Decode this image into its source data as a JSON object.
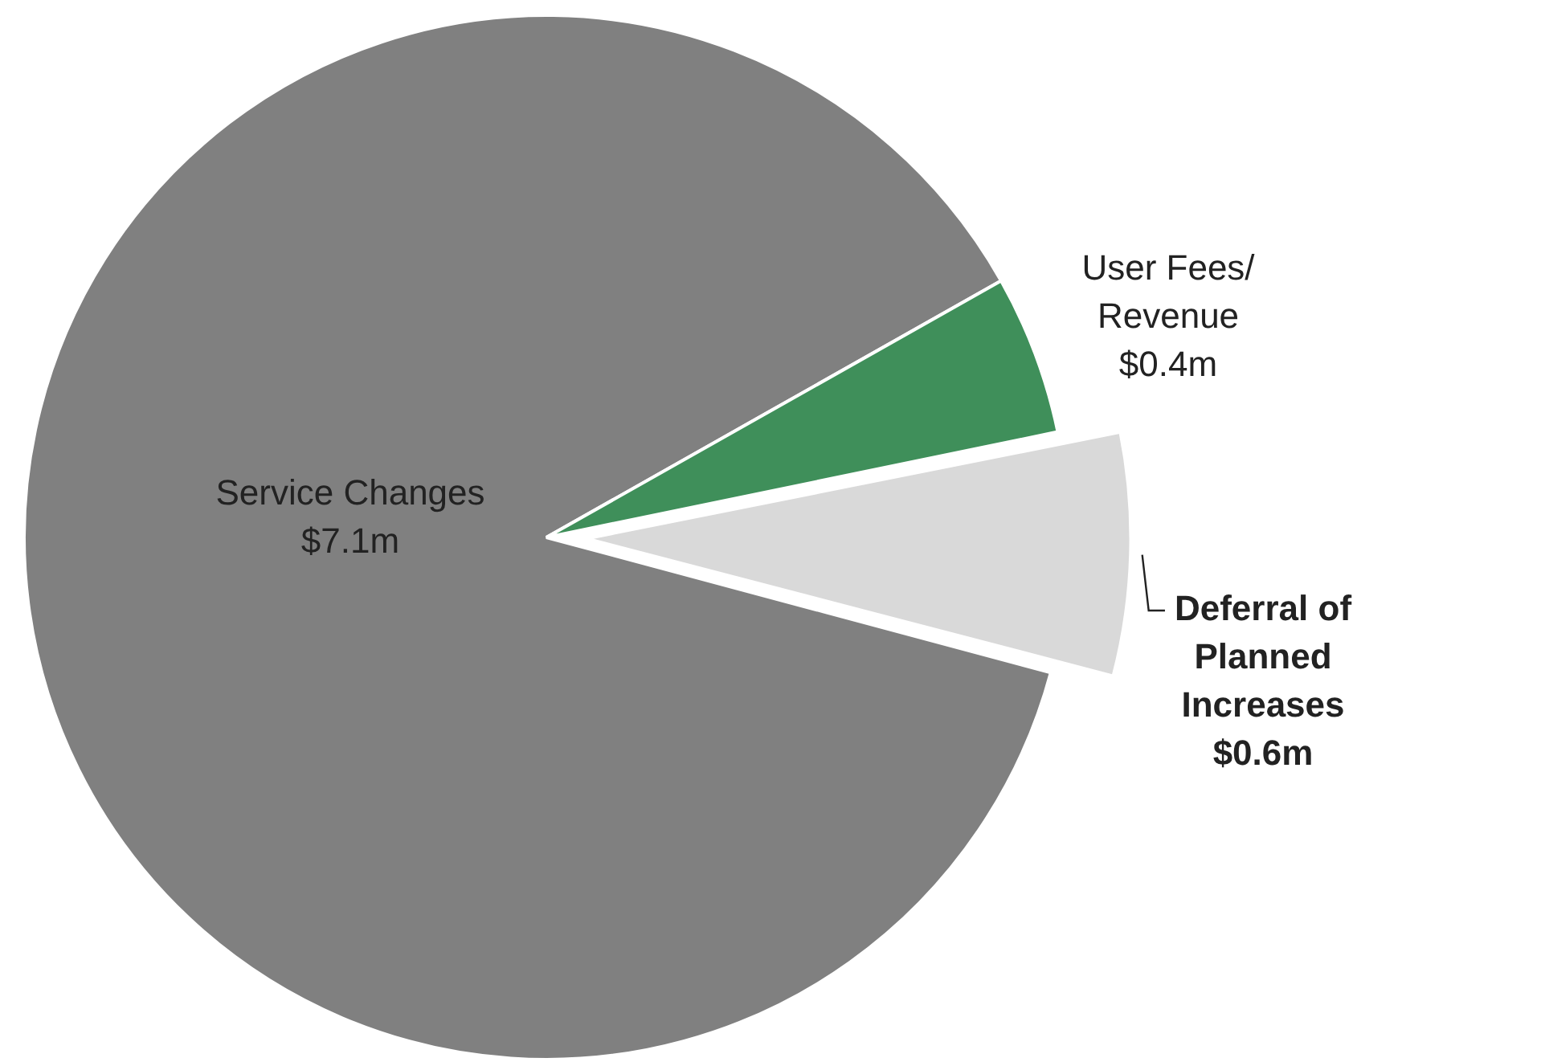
{
  "chart_data": {
    "type": "pie",
    "categories": [
      "Service Changes",
      "User Fees/ Revenue",
      "Deferral of Planned Increases"
    ],
    "values": [
      7.1,
      0.4,
      0.6
    ],
    "colors": [
      "#808080",
      "#3f8f5a",
      "#d9d9d9"
    ],
    "value_labels": [
      "$7.1m",
      "$0.4m",
      "$0.6m"
    ],
    "legend": false
  }
}
